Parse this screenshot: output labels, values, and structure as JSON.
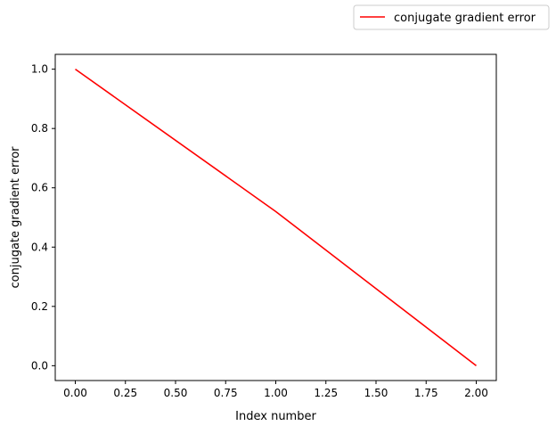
{
  "chart_data": {
    "type": "line",
    "title": "",
    "xlabel": "Index number",
    "ylabel": "conjugate gradient error",
    "xlim": [
      -0.1,
      2.1
    ],
    "ylim": [
      -0.05,
      1.05
    ],
    "xticks": [
      0.0,
      0.25,
      0.5,
      0.75,
      1.0,
      1.25,
      1.5,
      1.75,
      2.0
    ],
    "xtick_labels": [
      "0.00",
      "0.25",
      "0.50",
      "0.75",
      "1.00",
      "1.25",
      "1.50",
      "1.75",
      "2.00"
    ],
    "yticks": [
      0.0,
      0.2,
      0.4,
      0.6,
      0.8,
      1.0
    ],
    "ytick_labels": [
      "0.0",
      "0.2",
      "0.4",
      "0.6",
      "0.8",
      "1.0"
    ],
    "grid": false,
    "legend_position": "top-right, outside axes",
    "series": [
      {
        "name": "conjugate gradient error",
        "color": "#ff0000",
        "x": [
          0,
          1,
          2
        ],
        "y": [
          1.0,
          0.52,
          0.0
        ]
      }
    ]
  }
}
